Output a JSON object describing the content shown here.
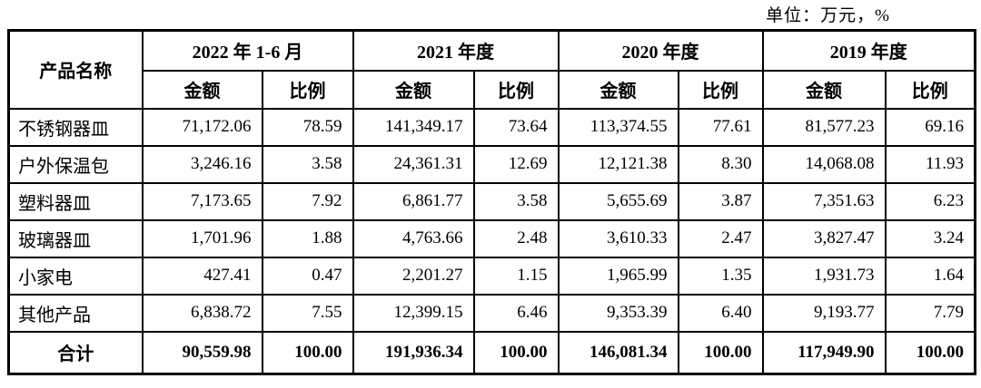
{
  "unit_label": "单位：万元，%",
  "colors": {
    "border": "#000000",
    "text": "#000000",
    "background": "#ffffff"
  },
  "table": {
    "product_col_header": "产品名称",
    "periods": [
      "2022 年 1-6 月",
      "2021 年度",
      "2020 年度",
      "2019 年度"
    ],
    "sub_headers": {
      "amount": "金额",
      "ratio": "比例"
    },
    "rows": [
      {
        "name": "不锈钢器皿",
        "values": [
          "71,172.06",
          "78.59",
          "141,349.17",
          "73.64",
          "113,374.55",
          "77.61",
          "81,577.23",
          "69.16"
        ]
      },
      {
        "name": "户外保温包",
        "values": [
          "3,246.16",
          "3.58",
          "24,361.31",
          "12.69",
          "12,121.38",
          "8.30",
          "14,068.08",
          "11.93"
        ]
      },
      {
        "name": "塑料器皿",
        "values": [
          "7,173.65",
          "7.92",
          "6,861.77",
          "3.58",
          "5,655.69",
          "3.87",
          "7,351.63",
          "6.23"
        ]
      },
      {
        "name": "玻璃器皿",
        "values": [
          "1,701.96",
          "1.88",
          "4,763.66",
          "2.48",
          "3,610.33",
          "2.47",
          "3,827.47",
          "3.24"
        ]
      },
      {
        "name": "小家电",
        "values": [
          "427.41",
          "0.47",
          "2,201.27",
          "1.15",
          "1,965.99",
          "1.35",
          "1,931.73",
          "1.64"
        ]
      },
      {
        "name": "其他产品",
        "values": [
          "6,838.72",
          "7.55",
          "12,399.15",
          "6.46",
          "9,353.39",
          "6.40",
          "9,193.77",
          "7.79"
        ]
      }
    ],
    "total_row": {
      "name": "合计",
      "values": [
        "90,559.98",
        "100.00",
        "191,936.34",
        "100.00",
        "146,081.34",
        "100.00",
        "117,949.90",
        "100.00"
      ]
    }
  }
}
